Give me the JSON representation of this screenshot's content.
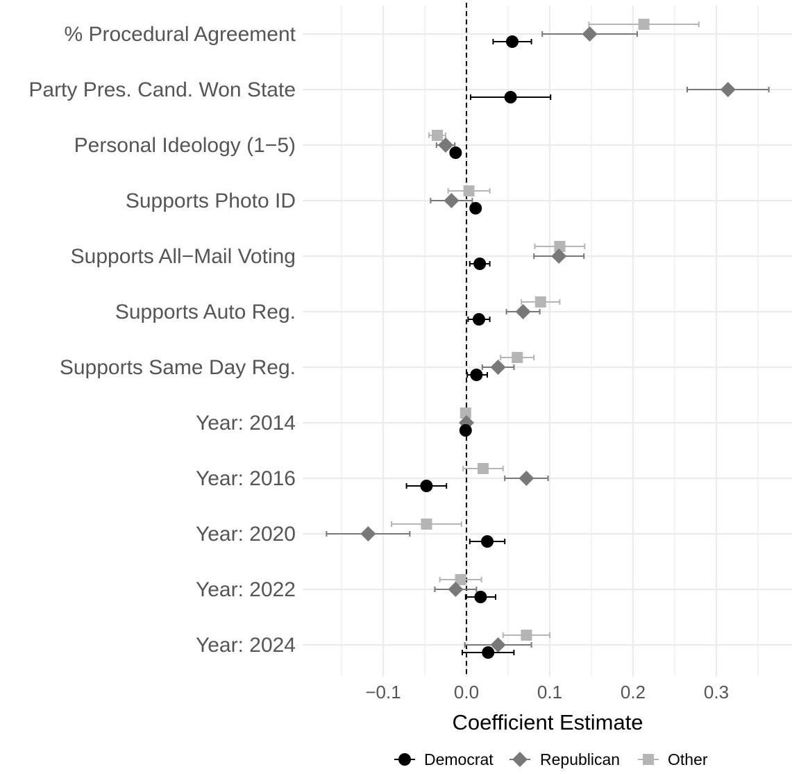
{
  "chart_data": {
    "type": "scatter",
    "subtype": "coefficient-plot",
    "title": "",
    "xlabel": "Coefficient Estimate",
    "ylabel": "",
    "xlim": [
      -0.19,
      0.39
    ],
    "xticks": [
      -0.1,
      0.0,
      0.1,
      0.2,
      0.3
    ],
    "xtick_labels": [
      "−0.1",
      "0.0",
      "0.1",
      "0.2",
      "0.3"
    ],
    "reference_line": 0,
    "grid": true,
    "legend_position": "bottom",
    "categories": [
      "% Procedural Agreement",
      "Party Pres. Cand. Won State",
      "Personal Ideology (1−5)",
      "Supports Photo ID",
      "Supports All−Mail Voting",
      "Supports Auto Reg.",
      "Supports Same Day Reg.",
      "Year: 2014",
      "Year: 2016",
      "Year: 2020",
      "Year: 2022",
      "Year: 2024"
    ],
    "series": [
      {
        "name": "Democrat",
        "color": "#000000",
        "marker": "circle",
        "estimate": [
          0.055,
          0.053,
          -0.013,
          0.011,
          0.016,
          0.015,
          0.012,
          -0.001,
          -0.048,
          0.025,
          0.017,
          0.026
        ],
        "lower": [
          0.032,
          0.005,
          -0.019,
          0.005,
          0.004,
          0.002,
          0.001,
          -0.003,
          -0.072,
          0.004,
          -0.001,
          -0.005
        ],
        "upper": [
          0.078,
          0.101,
          -0.007,
          0.017,
          0.028,
          0.028,
          0.025,
          0.001,
          -0.024,
          0.046,
          0.035,
          0.057
        ]
      },
      {
        "name": "Republican",
        "color": "#787878",
        "marker": "diamond",
        "estimate": [
          0.148,
          0.314,
          -0.025,
          -0.018,
          0.111,
          0.068,
          0.038,
          0.0,
          0.072,
          -0.118,
          -0.013,
          0.038
        ],
        "lower": [
          0.091,
          0.265,
          -0.036,
          -0.043,
          0.081,
          0.048,
          0.019,
          -0.003,
          0.046,
          -0.168,
          -0.038,
          -0.002
        ],
        "upper": [
          0.205,
          0.363,
          -0.014,
          0.007,
          0.141,
          0.088,
          0.057,
          0.003,
          0.098,
          -0.068,
          0.012,
          0.078
        ]
      },
      {
        "name": "Other",
        "color": "#b5b5b5",
        "marker": "square",
        "estimate": [
          0.213,
          null,
          -0.035,
          0.003,
          0.112,
          0.089,
          0.061,
          -0.001,
          0.02,
          -0.048,
          -0.007,
          0.072
        ],
        "lower": [
          0.147,
          null,
          -0.045,
          -0.022,
          0.082,
          0.066,
          0.041,
          -0.003,
          -0.004,
          -0.09,
          -0.032,
          0.044
        ],
        "upper": [
          0.279,
          null,
          -0.025,
          0.028,
          0.142,
          0.112,
          0.081,
          0.001,
          0.044,
          -0.006,
          0.018,
          0.1
        ]
      }
    ]
  }
}
